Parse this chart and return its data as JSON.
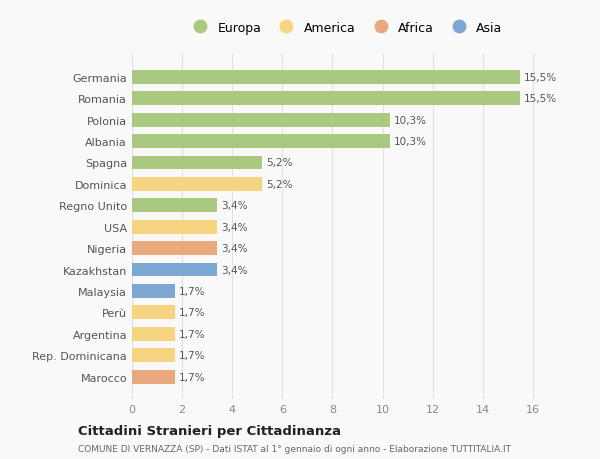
{
  "categories": [
    "Marocco",
    "Rep. Dominicana",
    "Argentina",
    "Perù",
    "Malaysia",
    "Kazakhstan",
    "Nigeria",
    "USA",
    "Regno Unito",
    "Dominica",
    "Spagna",
    "Albania",
    "Polonia",
    "Romania",
    "Germania"
  ],
  "values": [
    1.7,
    1.7,
    1.7,
    1.7,
    1.7,
    3.4,
    3.4,
    3.4,
    3.4,
    5.2,
    5.2,
    10.3,
    10.3,
    15.5,
    15.5
  ],
  "continents": [
    "Africa",
    "America",
    "America",
    "America",
    "Asia",
    "Asia",
    "Africa",
    "America",
    "Europa",
    "America",
    "Europa",
    "Europa",
    "Europa",
    "Europa",
    "Europa"
  ],
  "labels": [
    "1,7%",
    "1,7%",
    "1,7%",
    "1,7%",
    "1,7%",
    "3,4%",
    "3,4%",
    "3,4%",
    "3,4%",
    "5,2%",
    "5,2%",
    "10,3%",
    "10,3%",
    "15,5%",
    "15,5%"
  ],
  "colors": {
    "Europa": "#a8c97f",
    "America": "#f7d580",
    "Africa": "#e8a97e",
    "Asia": "#7ea8d4"
  },
  "legend_order": [
    "Europa",
    "America",
    "Africa",
    "Asia"
  ],
  "title": "Cittadini Stranieri per Cittadinanza",
  "subtitle": "COMUNE DI VERNAZZA (SP) - Dati ISTAT al 1° gennaio di ogni anno - Elaborazione TUTTITALIA.IT",
  "xlim": [
    0,
    17
  ],
  "xticks": [
    0,
    2,
    4,
    6,
    8,
    10,
    12,
    14,
    16
  ],
  "background_color": "#f9f9f9",
  "grid_color": "#e0e0e0",
  "bar_height": 0.65
}
